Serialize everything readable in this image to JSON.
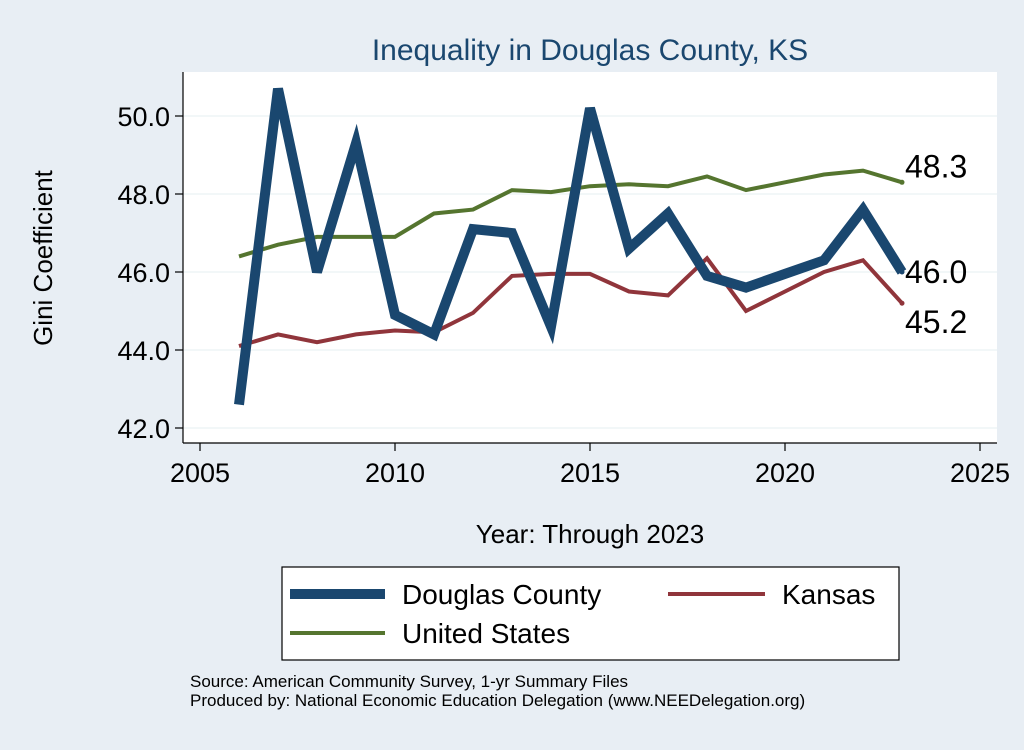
{
  "chart_data": {
    "type": "line",
    "title": "Inequality in Douglas County, KS",
    "xlabel": "Year: Through 2023",
    "ylabel": "Gini Coefficient",
    "xlim": [
      2005,
      2025
    ],
    "ylim": [
      42.0,
      51.0
    ],
    "x_ticks": [
      2005,
      2010,
      2015,
      2020,
      2025
    ],
    "x_tick_labels": [
      "2005",
      "2010",
      "2015",
      "2020",
      "2025"
    ],
    "y_ticks": [
      42.0,
      44.0,
      46.0,
      48.0,
      50.0
    ],
    "y_tick_labels": [
      "42.0",
      "44.0",
      "46.0",
      "48.0",
      "50.0"
    ],
    "grid": "horizontal",
    "legend_position": "bottom",
    "series": [
      {
        "name": "Douglas County",
        "color": "#1a476f",
        "x": [
          2006,
          2007,
          2008,
          2009,
          2010,
          2011,
          2012,
          2013,
          2014,
          2015,
          2016,
          2017,
          2018,
          2019,
          2020,
          2021,
          2022,
          2023
        ],
        "values": [
          42.6,
          50.7,
          46.0,
          49.3,
          44.9,
          44.4,
          47.1,
          47.0,
          44.6,
          50.2,
          46.6,
          47.5,
          45.9,
          45.6,
          45.95,
          46.3,
          47.6,
          46.0
        ],
        "end_label": "46.0"
      },
      {
        "name": "Kansas",
        "color": "#90353b",
        "x": [
          2006,
          2007,
          2008,
          2009,
          2010,
          2011,
          2012,
          2013,
          2014,
          2015,
          2016,
          2017,
          2018,
          2019,
          2020,
          2021,
          2022,
          2023
        ],
        "values": [
          44.1,
          44.4,
          44.2,
          44.4,
          44.5,
          44.45,
          44.95,
          45.9,
          45.95,
          45.95,
          45.5,
          45.4,
          46.35,
          45.0,
          45.5,
          46.0,
          46.3,
          45.2
        ],
        "end_label": "45.2"
      },
      {
        "name": "United States",
        "color": "#55752f",
        "x": [
          2006,
          2007,
          2008,
          2009,
          2010,
          2011,
          2012,
          2013,
          2014,
          2015,
          2016,
          2017,
          2018,
          2019,
          2020,
          2021,
          2022,
          2023
        ],
        "values": [
          46.4,
          46.7,
          46.9,
          46.9,
          46.9,
          47.5,
          47.6,
          48.1,
          48.05,
          48.2,
          48.25,
          48.2,
          48.45,
          48.1,
          48.3,
          48.5,
          48.6,
          48.3
        ],
        "end_label": "48.3"
      }
    ],
    "legend": [
      "Douglas County",
      "Kansas",
      "United States"
    ]
  },
  "footer": {
    "source": "Source: American Community Survey, 1-yr Summary Files",
    "produced_by": "Produced by: National Economic Education Delegation (www.NEEDelegation.org)"
  },
  "colors": {
    "background": "#e8eef4",
    "plot_background": "#ffffff",
    "title": "#1a476f"
  }
}
